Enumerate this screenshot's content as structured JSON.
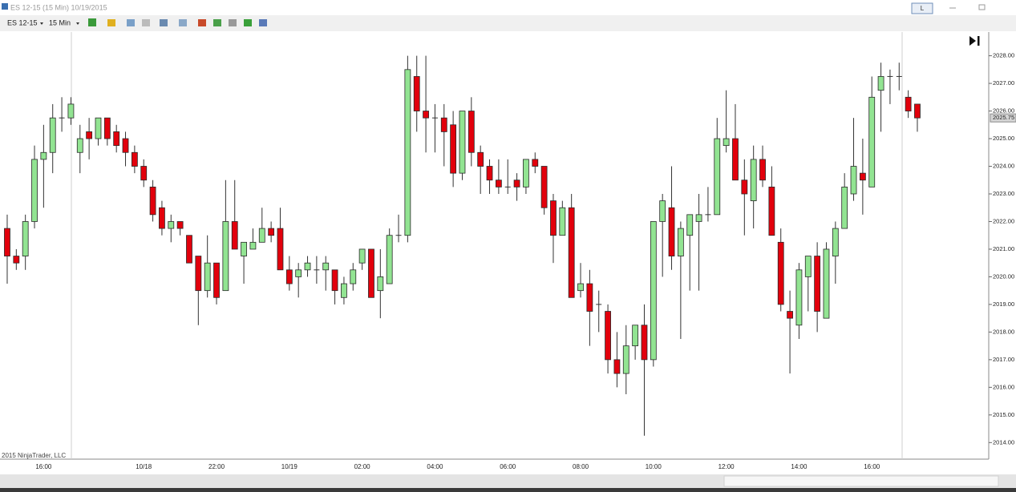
{
  "window": {
    "title": "ES 12-15 (15 Min) 10/19/2015",
    "mode_button": "L"
  },
  "toolbar": {
    "instrument": "ES 12-15",
    "interval": "15 Min"
  },
  "chart_data": {
    "type": "candlestick",
    "categories": [
      null,
      null,
      null,
      null,
      "16:00",
      null,
      null,
      null,
      null,
      null,
      null,
      null,
      null,
      null,
      null,
      "10/18",
      null,
      null,
      null,
      null,
      null,
      null,
      null,
      "22:00",
      null,
      null,
      null,
      null,
      null,
      null,
      null,
      "10/19",
      null,
      null,
      null,
      null,
      null,
      null,
      null,
      "02:00",
      null,
      null,
      null,
      null,
      null,
      null,
      null,
      "04:00",
      null,
      null,
      null,
      null,
      null,
      null,
      null,
      "06:00",
      null,
      null,
      null,
      null,
      null,
      null,
      null,
      "08:00",
      null,
      null,
      null,
      null,
      null,
      null,
      null,
      "10:00",
      null,
      null,
      null,
      null,
      null,
      null,
      null,
      "12:00",
      null,
      null,
      null,
      null,
      null,
      null,
      null,
      "14:00",
      null,
      null,
      null,
      null,
      null,
      null,
      null,
      "16:00",
      null,
      null,
      null,
      null,
      null
    ],
    "open": [
      2021.75,
      2020.75,
      2020.75,
      2022,
      2024.25,
      2024.5,
      2025.75,
      2025.75,
      2024.5,
      2025.25,
      2025,
      2025.75,
      2025.25,
      2025,
      2024.5,
      2024,
      2023.25,
      2022.5,
      2021.75,
      2022,
      2021.5,
      2020.75,
      2019.5,
      2020.5,
      2019.5,
      2022,
      2020.75,
      2021,
      2021.25,
      2021.75,
      2021.75,
      2020.25,
      2020,
      2020.25,
      2020.25,
      2020.25,
      2020.25,
      2019.25,
      2019.75,
      2020.5,
      2021,
      2019.5,
      2019.75,
      2021.5,
      2021.5,
      2027.25,
      2026,
      2025.75,
      2025.75,
      2025.5,
      2023.75,
      2026,
      2024.5,
      2024,
      2023.5,
      2023.25,
      2023.5,
      2023.25,
      2024.25,
      2024,
      2022.75,
      2021.5,
      2022.5,
      2019.5,
      2019.75,
      2019,
      2018.75,
      2017,
      2016.5,
      2017.5,
      2018.25,
      2017,
      2022,
      2022.5,
      2020.75,
      2021.5,
      2022,
      2022.25,
      2022.25,
      2024.75,
      2025,
      2023.5,
      2022.75,
      2024.25,
      2023.25,
      2021.25,
      2018.75,
      2018.25,
      2020,
      2020.75,
      2018.5,
      2020.75,
      2021.75,
      2023,
      2023.75,
      2023.25,
      2026.75,
      2027.25,
      2027.25,
      2026.5,
      2026.25
    ],
    "high": [
      2022.25,
      2021,
      2022.25,
      2024.75,
      2025.5,
      2026.25,
      2026.5,
      2026.5,
      2025.5,
      2025.75,
      2025.75,
      2025.75,
      2025.5,
      2025.25,
      2024.75,
      2024.25,
      2023.5,
      2022.75,
      2022.25,
      2022,
      2021.5,
      2020.75,
      2021.5,
      2020.5,
      2023.5,
      2023.5,
      2021.25,
      2021.75,
      2022.5,
      2022,
      2022.5,
      2020.75,
      2020.5,
      2020.75,
      2020.75,
      2020.75,
      2020.25,
      2020,
      2020.5,
      2021,
      2021,
      2021,
      2021.75,
      2022.25,
      2028,
      2028,
      2028,
      2026.25,
      2026.25,
      2026,
      2026,
      2026.5,
      2024.75,
      2024.25,
      2024.25,
      2024.25,
      2023.75,
      2024.25,
      2024.5,
      2024,
      2023,
      2022.75,
      2023,
      2020.5,
      2020.25,
      2019.5,
      2019,
      2018,
      2018.25,
      2018.25,
      2019,
      2022,
      2023,
      2024,
      2022,
      2022.25,
      2023,
      2023.25,
      2025.75,
      2026.75,
      2026.25,
      2024.25,
      2024.75,
      2024.75,
      2024,
      2021.75,
      2019.5,
      2020.5,
      2020.75,
      2021.25,
      2021.25,
      2022,
      2023.75,
      2025.75,
      2025,
      2027.25,
      2027.75,
      2027.5,
      2027.75,
      2026.75,
      2026.25
    ],
    "low": [
      2019.75,
      2020.25,
      2020.25,
      2021.75,
      2022.5,
      2023.75,
      2025.25,
      2025.5,
      2023.75,
      2024.25,
      2024.75,
      2024.75,
      2024.5,
      2024,
      2023.75,
      2023.25,
      2022,
      2021.5,
      2021.25,
      2021.5,
      2020.5,
      2018.25,
      2019.25,
      2019,
      2019.5,
      2021,
      2019.75,
      2021,
      2021.25,
      2021.25,
      2020.25,
      2019.5,
      2019.25,
      2020,
      2019.75,
      2019.5,
      2019,
      2019,
      2019.5,
      2020.25,
      2019.25,
      2018.5,
      2019.75,
      2021.25,
      2021.25,
      2025.25,
      2024.5,
      2024.5,
      2024,
      2023.25,
      2023.5,
      2024,
      2023,
      2023,
      2023,
      2023,
      2022.75,
      2023,
      2023.75,
      2022.25,
      2020.5,
      2021.5,
      2019.25,
      2019.25,
      2017.5,
      2018,
      2016.5,
      2016,
      2015.75,
      2017,
      2014.25,
      2016.75,
      2020,
      2020.25,
      2017.75,
      2019.5,
      2019.5,
      2022,
      2022.25,
      2024.5,
      2023.5,
      2021.5,
      2021.75,
      2023.25,
      2021.5,
      2018.75,
      2016.5,
      2017.75,
      2018.75,
      2018,
      2018.5,
      2019.75,
      2021.75,
      2022.75,
      2022.25,
      2023.25,
      2025.25,
      2026.25,
      2026.75,
      2025.75,
      2025.25
    ],
    "close": [
      2020.75,
      2020.5,
      2022,
      2024.25,
      2024.5,
      2025.75,
      2025.75,
      2026.25,
      2025,
      2025,
      2025.75,
      2025,
      2024.75,
      2024.5,
      2024,
      2023.5,
      2022.25,
      2021.75,
      2022,
      2021.75,
      2020.5,
      2019.5,
      2020.5,
      2019.25,
      2022,
      2021,
      2021.25,
      2021.25,
      2021.75,
      2021.5,
      2020.25,
      2019.75,
      2020.25,
      2020.5,
      2020.25,
      2020.5,
      2019.5,
      2019.75,
      2020.25,
      2021,
      2019.25,
      2020,
      2021.5,
      2021.5,
      2027.5,
      2026,
      2025.75,
      2025.75,
      2025.25,
      2023.75,
      2026,
      2024.5,
      2024,
      2023.5,
      2023.25,
      2023.25,
      2023.25,
      2024.25,
      2024,
      2022.5,
      2021.5,
      2022.5,
      2019.25,
      2019.75,
      2018.75,
      2019,
      2017,
      2016.5,
      2017.5,
      2018.25,
      2017,
      2022,
      2022.75,
      2020.75,
      2021.75,
      2022.25,
      2022.25,
      2022.25,
      2025,
      2025,
      2023.5,
      2023,
      2024.25,
      2023.5,
      2021.5,
      2019,
      2018.5,
      2020.25,
      2020.75,
      2018.75,
      2021,
      2021.75,
      2023.25,
      2024,
      2023.5,
      2026.5,
      2027.25,
      2027.25,
      2027.25,
      2026,
      2025.75
    ],
    "up_color": "#92e492",
    "down_color": "#e2000c",
    "ylim": [
      2013.4,
      2028.8
    ],
    "yticks": [
      {
        "value": 2014,
        "label": "2014.00"
      },
      {
        "value": 2015,
        "label": "2015.00"
      },
      {
        "value": 2016,
        "label": "2016.00"
      },
      {
        "value": 2017,
        "label": "2017.00"
      },
      {
        "value": 2018,
        "label": "2018.00"
      },
      {
        "value": 2019,
        "label": "2019.00"
      },
      {
        "value": 2020,
        "label": "2020.00"
      },
      {
        "value": 2021,
        "label": "2021.00"
      },
      {
        "value": 2022,
        "label": "2022.00"
      },
      {
        "value": 2023,
        "label": "2023.00"
      },
      {
        "value": 2024,
        "label": "2024.00"
      },
      {
        "value": 2025,
        "label": "2025.00"
      },
      {
        "value": 2026,
        "label": "2026.00"
      },
      {
        "value": 2027,
        "label": "2027.00"
      },
      {
        "value": 2028,
        "label": "2028.00"
      }
    ],
    "last_price": 2025.75,
    "copyright": "2015 NinjaTrader, LLC"
  }
}
